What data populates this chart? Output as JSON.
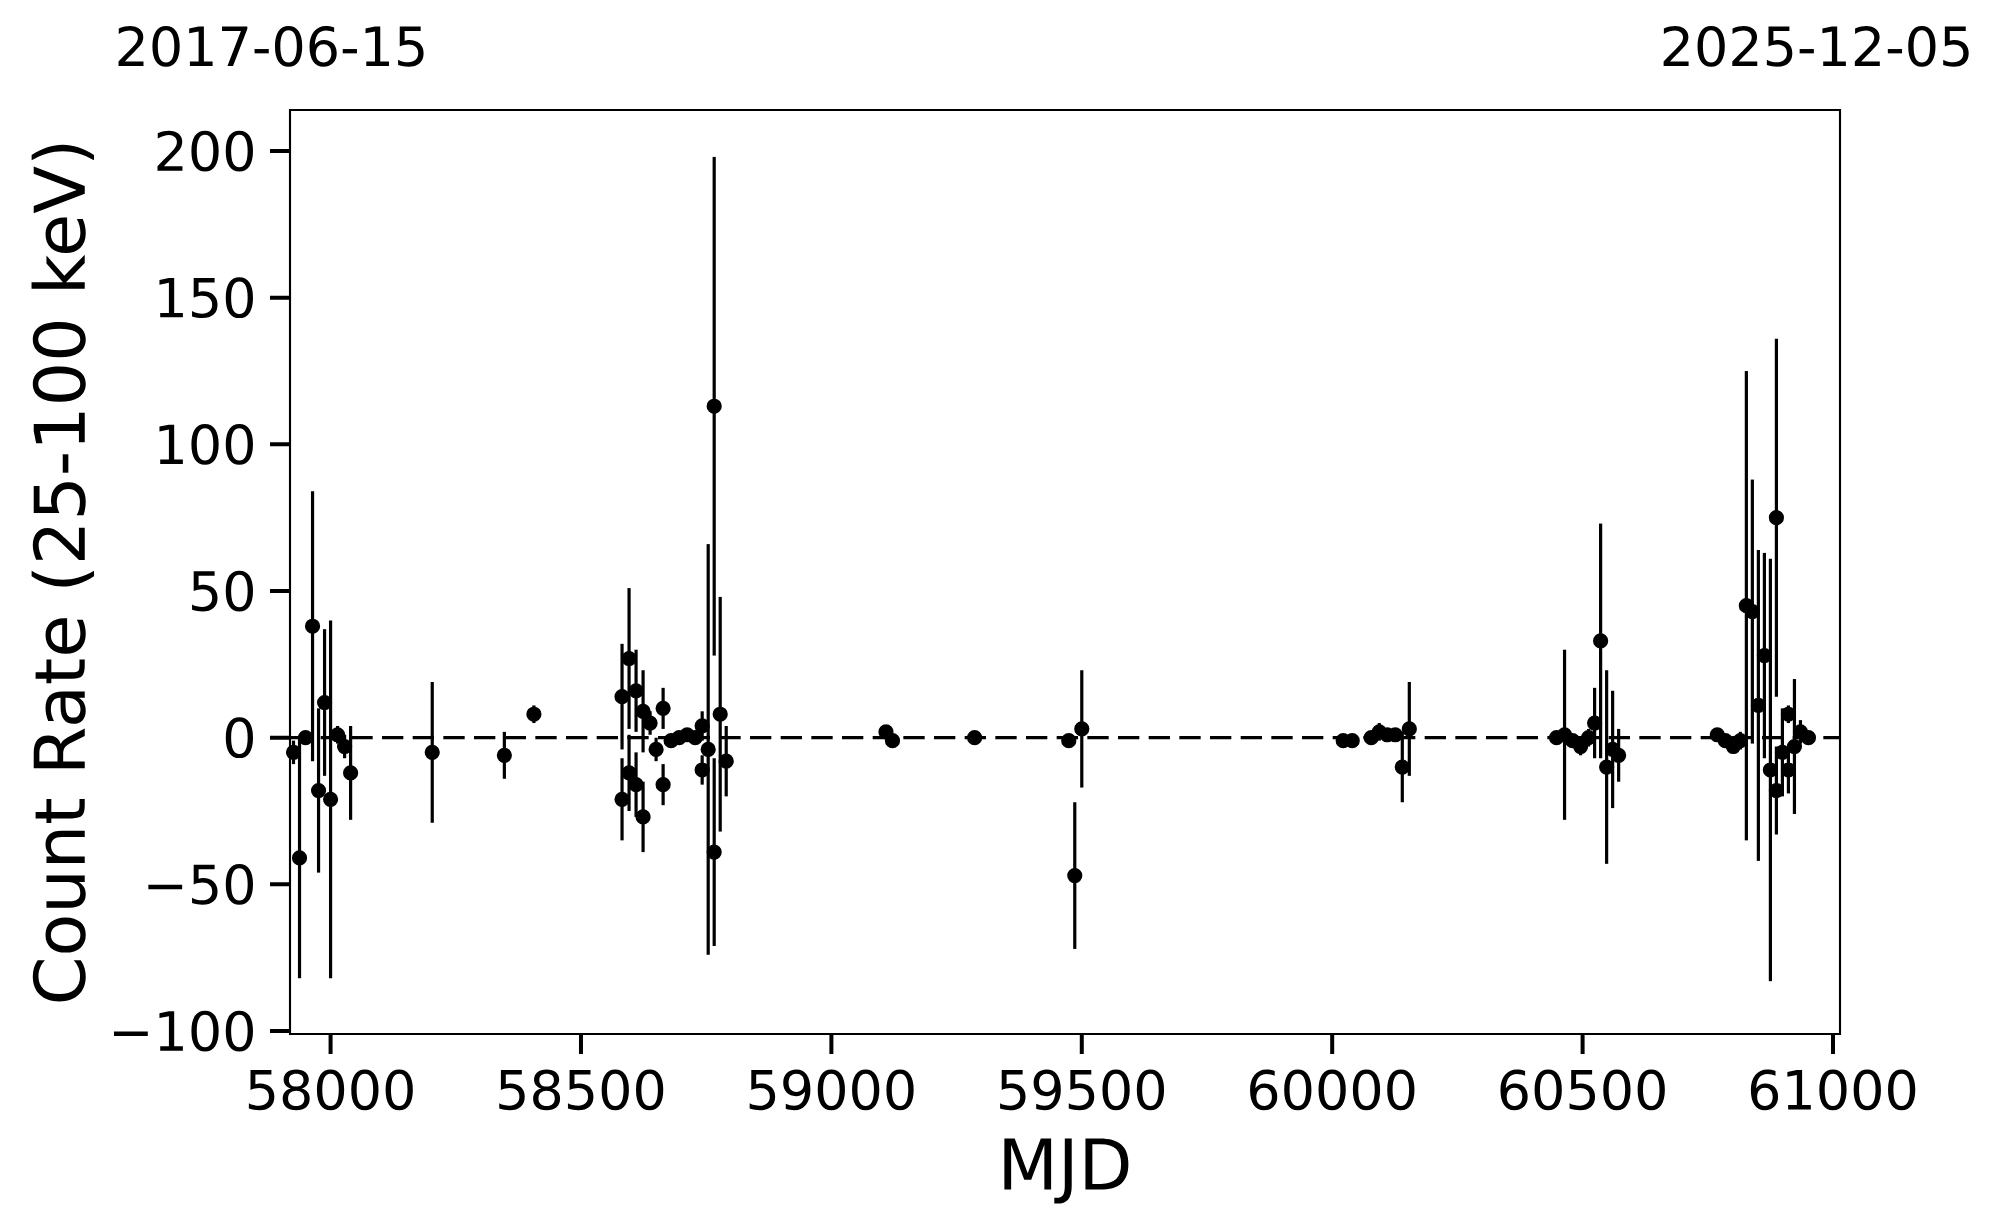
{
  "chart_data": {
    "type": "scatter",
    "xlabel": "MJD",
    "ylabel": "Count Rate (25-100 keV)",
    "annotations": [
      "2017-06-15",
      "2025-12-05"
    ],
    "x": [
      57926,
      57938,
      57950,
      57964,
      57976,
      57988,
      58000,
      58014,
      58028,
      58040,
      58203,
      58347,
      58406,
      58582,
      58582,
      58596,
      58596,
      58610,
      58610,
      58624,
      58624,
      58638,
      58650,
      58664,
      58664,
      58680,
      58696,
      58712,
      58728,
      58742,
      58742,
      58754,
      58766,
      58766,
      58778,
      58790,
      59109,
      59122,
      59286,
      59474,
      59486,
      59500,
      60022,
      60040,
      60078,
      60094,
      60110,
      60126,
      60140,
      60154,
      60448,
      60464,
      60480,
      60496,
      60512,
      60524,
      60536,
      60548,
      60560,
      60572,
      60769,
      60785,
      60801,
      60815,
      60827,
      60839,
      60851,
      60863,
      60875,
      60887,
      60887,
      60899,
      60911,
      60911,
      60923,
      60935,
      60951
    ],
    "values": [
      -5,
      -41,
      0,
      38,
      -18,
      12,
      -21,
      1,
      -3,
      -12,
      -5,
      -6,
      8,
      14,
      -21,
      27,
      -12,
      16,
      -16,
      9,
      -27,
      5,
      -4,
      10,
      -16,
      -1,
      0,
      1,
      0,
      4,
      -11,
      -4,
      113,
      -39,
      8,
      -8,
      2,
      -1,
      0,
      -1,
      -47,
      3,
      -1,
      -1,
      0,
      2,
      1,
      1,
      -10,
      3,
      0,
      1,
      -1,
      -3,
      0,
      5,
      33,
      -10,
      -4,
      -6,
      1,
      -1,
      -3,
      -1,
      45,
      43,
      11,
      28,
      -11,
      75,
      -18,
      -5,
      8,
      -11,
      -3,
      2,
      0
    ],
    "errors": [
      4,
      41,
      2,
      46,
      28,
      25,
      61,
      3,
      4,
      16,
      24,
      8,
      3,
      18,
      14,
      24,
      13,
      14,
      11,
      14,
      12,
      4,
      4,
      7,
      7,
      2,
      2,
      2,
      2,
      5,
      5,
      70,
      85,
      32,
      40,
      12,
      2,
      2,
      1,
      2,
      25,
      20,
      1,
      2,
      2,
      3,
      2,
      2,
      12,
      16,
      2,
      29,
      2,
      3,
      3,
      12,
      40,
      33,
      20,
      9,
      2,
      2,
      2,
      3,
      80,
      45,
      53,
      35,
      72,
      61,
      15,
      15,
      3,
      8,
      23,
      4,
      2
    ],
    "color": "#000000",
    "marker": "circle",
    "xlim": [
      57919,
      61014
    ],
    "ylim": [
      -101,
      214
    ],
    "xticks": [
      58000,
      58500,
      59000,
      59500,
      60000,
      60500,
      61000
    ],
    "yticks": [
      {
        "value": -100,
        "label": "−100"
      },
      {
        "value": -50,
        "label": "−50"
      },
      0,
      50,
      100,
      150,
      200
    ],
    "ref_lines": [
      {
        "axis": "y",
        "value": 0,
        "color": "#000000",
        "line_style": "dashed"
      }
    ]
  }
}
